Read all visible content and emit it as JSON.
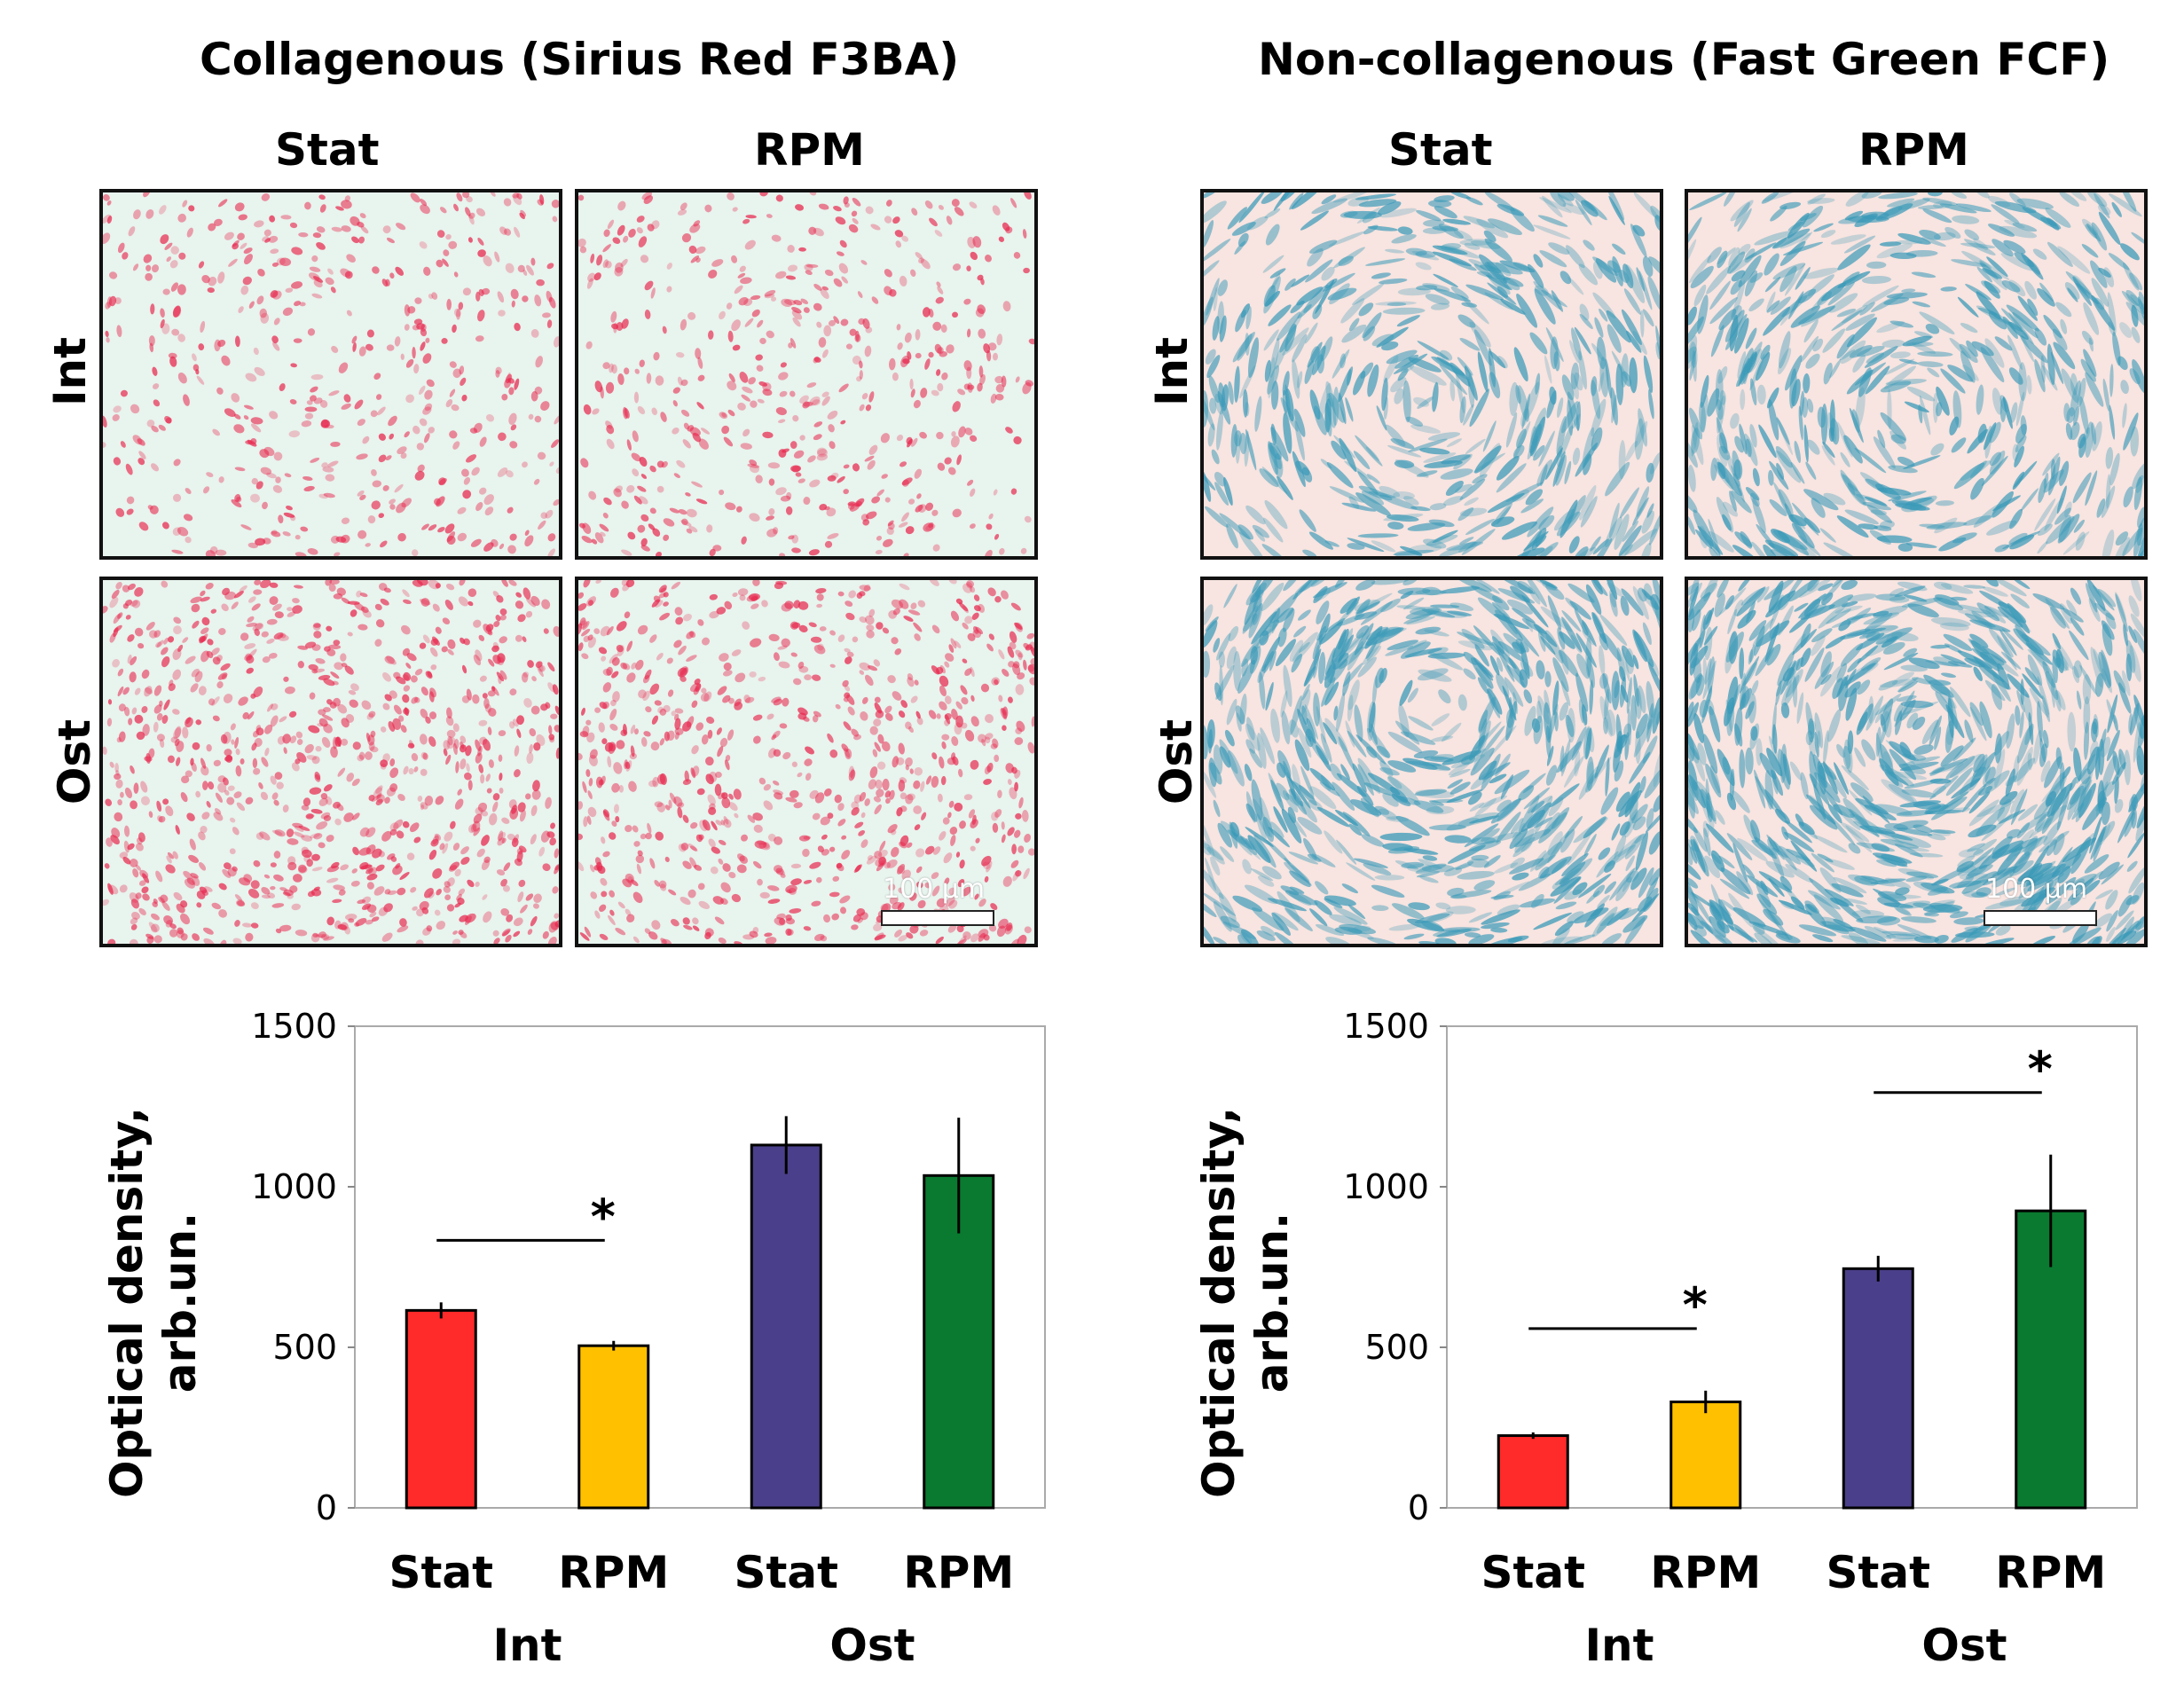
{
  "panels": [
    {
      "title": "Collagenous (Sirius Red F3BA)",
      "stain": "sirius-red",
      "col_labels": [
        "Stat",
        "RPM"
      ],
      "row_labels": [
        "Int",
        "Ost"
      ],
      "scale_bar": "100 µm"
    },
    {
      "title": "Non-collagenous (Fast Green FCF)",
      "stain": "fast-green",
      "col_labels": [
        "Stat",
        "RPM"
      ],
      "row_labels": [
        "Int",
        "Ost"
      ],
      "scale_bar": "100 µm"
    }
  ],
  "colors": {
    "int_stat": "#ff2a2a",
    "int_rpm": "#ffc000",
    "ost_stat": "#4a3f8a",
    "ost_rpm": "#0a7a30",
    "sirius_bg": "#e8f4ee",
    "sirius_stain": "#e8284e",
    "fastgreen_bg": "#f8e4e0",
    "fastgreen_stain": "#3a9ab8"
  },
  "chart_data": [
    {
      "type": "bar",
      "categories": [
        "Stat",
        "RPM",
        "Stat",
        "RPM"
      ],
      "groups": [
        "Int",
        "Ost"
      ],
      "values": [
        615,
        505,
        1130,
        1035
      ],
      "errors": [
        25,
        15,
        90,
        180
      ],
      "ylabel": "Optical density, arb.un.",
      "ylabel_lines": [
        "Optical density,",
        "arb.un."
      ],
      "ylim": [
        0,
        1500
      ],
      "yticks": [
        0,
        500,
        1000,
        1500
      ],
      "significance": [
        {
          "from": 0,
          "to": 1,
          "label": "*"
        }
      ]
    },
    {
      "type": "bar",
      "categories": [
        "Stat",
        "RPM",
        "Stat",
        "RPM"
      ],
      "groups": [
        "Int",
        "Ost"
      ],
      "values": [
        225,
        330,
        745,
        925
      ],
      "errors": [
        10,
        35,
        40,
        175
      ],
      "ylabel": "Optical density, arb.un.",
      "ylabel_lines": [
        "Optical density,",
        "arb.un."
      ],
      "ylim": [
        0,
        1500
      ],
      "yticks": [
        0,
        500,
        1000,
        1500
      ],
      "significance": [
        {
          "from": 0,
          "to": 1,
          "label": "*"
        },
        {
          "from": 2,
          "to": 3,
          "label": "*"
        }
      ]
    }
  ]
}
